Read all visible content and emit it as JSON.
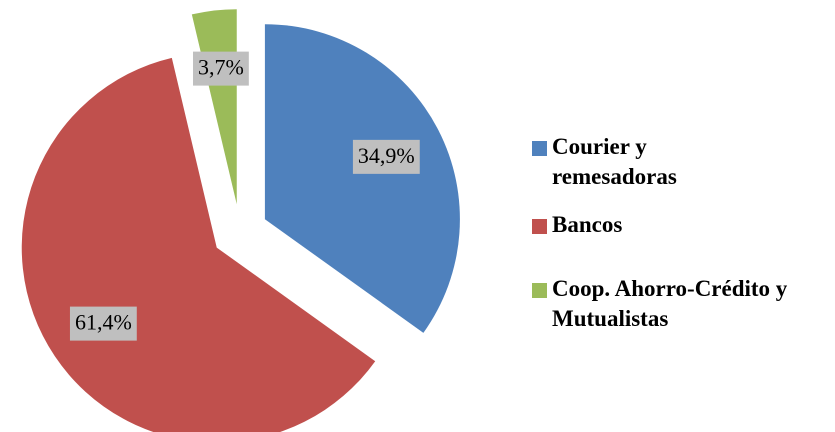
{
  "chart_data": {
    "type": "pie",
    "categories": [
      "Courier y remesadoras",
      "Bancos",
      "Coop. Ahorro-Crédito y Mutualistas"
    ],
    "values": [
      34.9,
      61.4,
      3.7
    ],
    "value_labels": [
      "34,9%",
      "61,4%",
      "3,7%"
    ],
    "colors": [
      "#4f81bd",
      "#c0504d",
      "#9bbb59"
    ],
    "legend": "right"
  }
}
